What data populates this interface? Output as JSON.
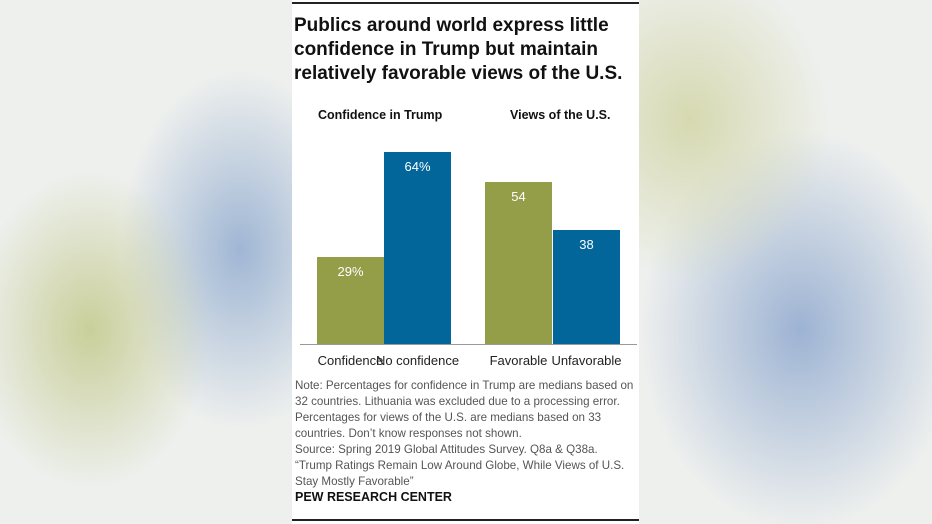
{
  "title": "Publics around world express little confidence in Trump but maintain relatively favorable views of the U.S.",
  "chart_data": {
    "type": "bar",
    "groups": [
      {
        "label": "Confidence in Trump",
        "categories": [
          "Confidence",
          "No confidence"
        ],
        "values": [
          29,
          64
        ],
        "data_labels": [
          "29%",
          "64%"
        ]
      },
      {
        "label": "Views of the U.S.",
        "categories": [
          "Favorable",
          "Unfavorable"
        ],
        "values": [
          54,
          38
        ],
        "data_labels": [
          "54",
          "38"
        ]
      }
    ],
    "colors": [
      "#949d48",
      "#02669a"
    ],
    "ylim": [
      0,
      100
    ],
    "grid": false
  },
  "notes": [
    "Note: Percentages for confidence in Trump are medians based on 32 countries. Lithuania was excluded due to a processing error. Percentages for views of the U.S. are medians based on 33 countries. Don’t know responses not shown.",
    "Source: Spring 2019 Global Attitudes Survey. Q8a & Q38a.",
    "“Trump Ratings Remain Low Around Globe, While Views of U.S. Stay Mostly Favorable”"
  ],
  "brand": "PEW RESEARCH CENTER"
}
